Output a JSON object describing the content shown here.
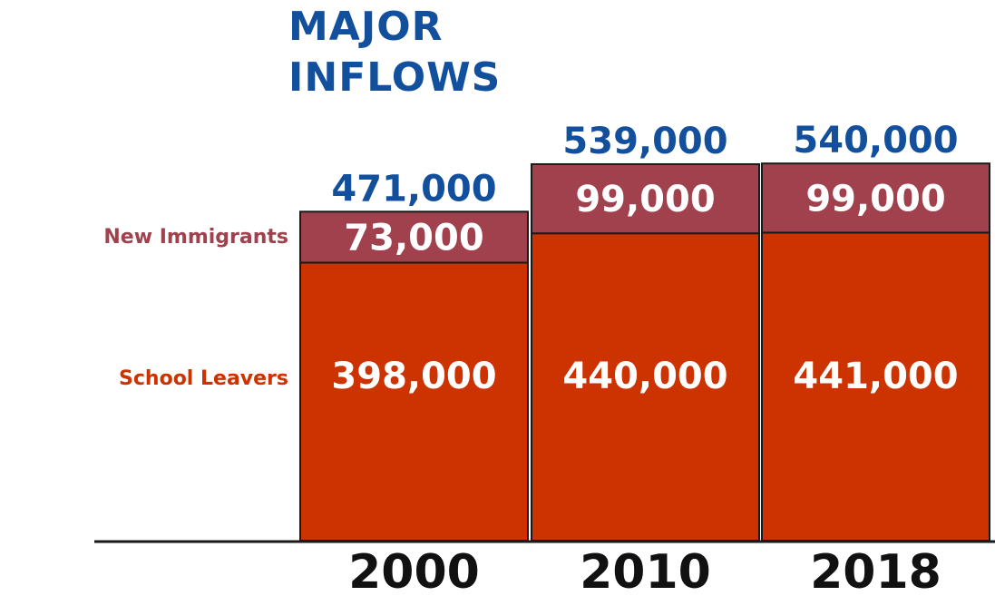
{
  "chart_data": {
    "type": "bar",
    "stacked": true,
    "title": [
      "MAJOR",
      "INFLOWS"
    ],
    "categories": [
      "2000",
      "2010",
      "2018"
    ],
    "series": [
      {
        "name": "School Leavers",
        "values": [
          398000,
          440000,
          441000
        ],
        "labels": [
          "398,000",
          "440,000",
          "441,000"
        ],
        "color": "#cc3300"
      },
      {
        "name": "New Immigrants",
        "values": [
          73000,
          99000,
          99000
        ],
        "labels": [
          "73,000",
          "99,000",
          "99,000"
        ],
        "color": "#a1414d"
      }
    ],
    "totals": [
      "471,000",
      "539,000",
      "540,000"
    ],
    "colors": {
      "title": "#124f9c",
      "totals": "#124f9c",
      "text_on_bars": "#ffffff",
      "axis": "#1a1a1a"
    },
    "ylim": [
      0,
      560000
    ]
  }
}
